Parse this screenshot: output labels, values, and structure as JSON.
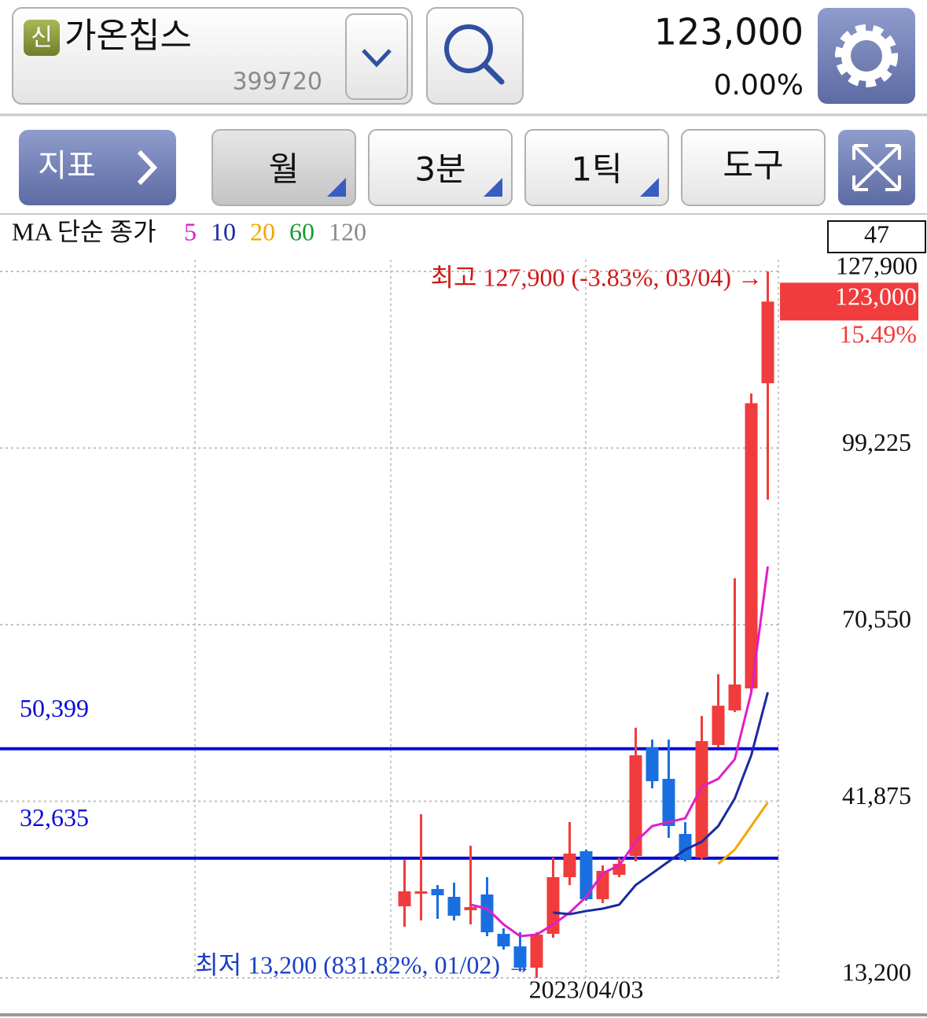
{
  "header": {
    "badge": "신",
    "name": "가온칩스",
    "code": "399720",
    "price": "123,000",
    "change": "0.00%"
  },
  "toolbar": {
    "indicator": "지표",
    "period": "월",
    "minute": "3분",
    "tick": "1틱",
    "tools": "도구"
  },
  "chart_data": {
    "type": "candlestick",
    "ma_label": "MA 단순 종가",
    "categories": [
      null,
      null,
      null,
      null,
      null,
      null,
      null,
      null,
      null,
      null,
      null,
      "2023/04/03",
      null,
      null,
      null,
      null,
      null,
      null,
      null,
      null,
      null,
      null,
      null
    ],
    "open": [
      24820,
      26900,
      27630,
      26350,
      24180,
      26740,
      20350,
      18310,
      14860,
      20350,
      29550,
      33760,
      25970,
      29930,
      33000,
      50620,
      45510,
      36570,
      32740,
      51000,
      56620,
      60190,
      109740
    ],
    "high": [
      32350,
      39760,
      28270,
      28650,
      34650,
      29550,
      21240,
      20610,
      20610,
      32740,
      38490,
      34020,
      31460,
      32740,
      53810,
      51890,
      51890,
      38490,
      55720,
      62490,
      78070,
      108080,
      127900
    ],
    "low": [
      21500,
      22520,
      22780,
      22520,
      21880,
      19970,
      17800,
      14220,
      13200,
      19710,
      28270,
      25710,
      25330,
      29550,
      32100,
      43980,
      35930,
      32100,
      32360,
      50620,
      56360,
      59550,
      90840
    ],
    "close": [
      27250,
      27250,
      26610,
      23290,
      24690,
      20610,
      18310,
      14860,
      20220,
      29550,
      33380,
      25970,
      30570,
      31720,
      49340,
      45130,
      37850,
      32480,
      51640,
      57390,
      60830,
      106500,
      123000
    ],
    "up_color": "#f03c3c",
    "down_color": "#1a6fe0",
    "ma_series": [
      {
        "name": "5",
        "color": "#e01ec8",
        "values": [
          null,
          null,
          null,
          null,
          25080,
          24440,
          21880,
          19970,
          20220,
          21880,
          23800,
          26350,
          30180,
          31460,
          35290,
          37850,
          38480,
          39120,
          44230,
          45510,
          48700,
          59560,
          79990
        ]
      },
      {
        "name": "10",
        "color": "#1a2aa0",
        "values": [
          null,
          null,
          null,
          null,
          null,
          null,
          null,
          null,
          null,
          23800,
          23540,
          24050,
          24440,
          25080,
          28270,
          30180,
          32100,
          34020,
          35290,
          37850,
          42320,
          49340,
          59560
        ]
      },
      {
        "name": "20",
        "color": "#f0a800",
        "values": [
          null,
          null,
          null,
          null,
          null,
          null,
          null,
          null,
          null,
          null,
          null,
          null,
          null,
          null,
          null,
          null,
          null,
          null,
          null,
          31720,
          34020,
          37850,
          41680
        ]
      },
      {
        "name": "60",
        "color": "#189a30",
        "values": [
          null,
          null,
          null,
          null,
          null,
          null,
          null,
          null,
          null,
          null,
          null,
          null,
          null,
          null,
          null,
          null,
          null,
          null,
          null,
          null,
          null,
          null,
          null
        ]
      },
      {
        "name": "120",
        "color": "#8a8a8a",
        "values": [
          null,
          null,
          null,
          null,
          null,
          null,
          null,
          null,
          null,
          null,
          null,
          null,
          null,
          null,
          null,
          null,
          null,
          null,
          null,
          null,
          null,
          null,
          null
        ]
      }
    ],
    "ylim": [
      13200,
      127900
    ],
    "yticks": [
      {
        "value": 13200,
        "label": "13,200"
      },
      {
        "value": 41875,
        "label": "41,875"
      },
      {
        "value": 70550,
        "label": "70,550"
      },
      {
        "value": 99225,
        "label": "99,225"
      },
      {
        "value": 127900,
        "label": "127,900"
      }
    ],
    "grid": true,
    "hlines": [
      {
        "value": 50399,
        "label": "50,399"
      },
      {
        "value": 32635,
        "label": "32,635"
      }
    ],
    "hline_color": "#0a0ad8",
    "high_annotation": "최고 127,900 (-3.83%, 03/04) →",
    "low_annotation": "최저 13,200 (831.82%, 01/02) →",
    "count_label": "47",
    "last_price": {
      "value": 123000,
      "label": "123,000"
    },
    "last_change": "15.49%"
  }
}
